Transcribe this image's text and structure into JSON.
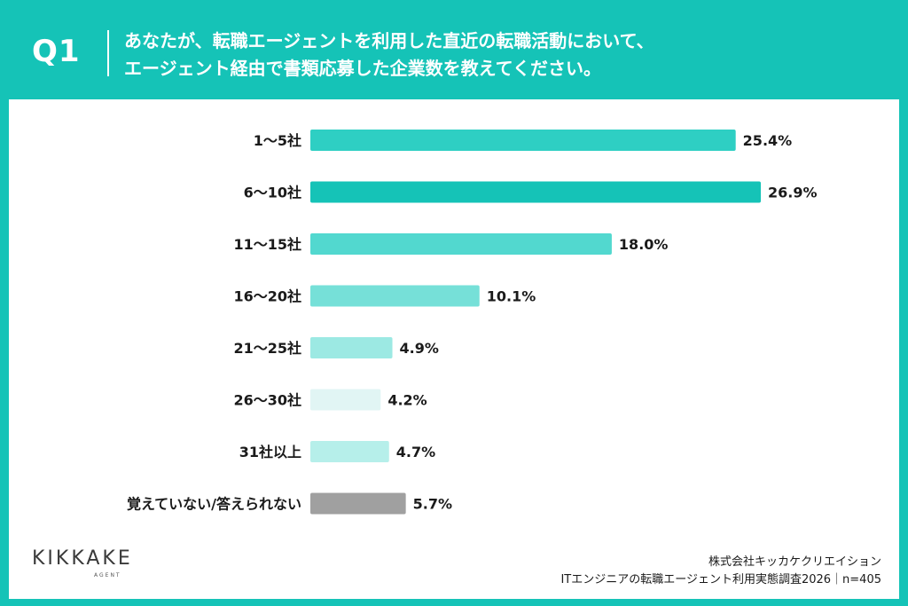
{
  "header": {
    "q_label": "Q1",
    "question_line1": "あなたが、転職エージェントを利用した直近の転職活動において、",
    "question_line2": "エージェント経由で書類応募した企業数を教えてください。"
  },
  "chart_data": {
    "type": "bar",
    "orientation": "horizontal",
    "categories": [
      "1〜5社",
      "6〜10社",
      "11〜15社",
      "16〜20社",
      "21〜25社",
      "26〜30社",
      "31社以上",
      "覚えていない/答えられない"
    ],
    "values": [
      25.4,
      26.9,
      18.0,
      10.1,
      4.9,
      4.2,
      4.7,
      5.7
    ],
    "value_labels": [
      "25.4%",
      "26.9%",
      "18.0%",
      "10.1%",
      "4.9%",
      "4.2%",
      "4.7%",
      "5.7%"
    ],
    "colors": [
      "#2ecfc3",
      "#15c3b7",
      "#52d8cf",
      "#76e0d8",
      "#9ce9e3",
      "#e1f5f4",
      "#b6efea",
      "#a0a0a0"
    ],
    "xlim": [
      0,
      26.9
    ],
    "grid": false
  },
  "logo": {
    "name": "KIKKAKE",
    "sub": "AGENT"
  },
  "footer": {
    "company": "株式会社キッカケクリエイション",
    "survey": "ITエンジニアの転職エージェント利用実態調査2026｜n=405"
  }
}
